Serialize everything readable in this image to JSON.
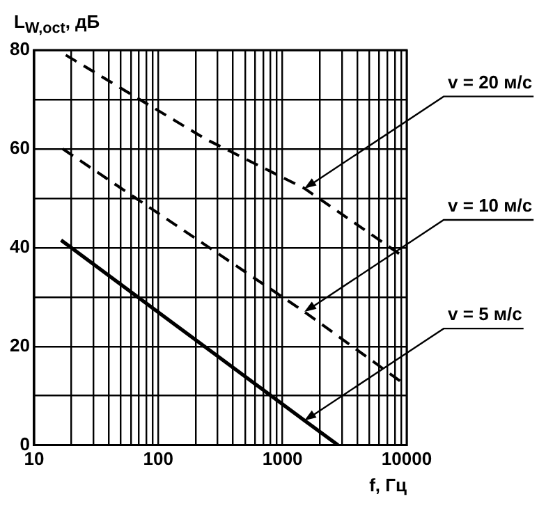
{
  "chart_data": {
    "type": "line",
    "ylabel": "L$_{W,oct}$, дБ",
    "xlabel": "f, Гц",
    "log": "x",
    "grid": true,
    "legend": false,
    "marker": "none",
    "xlim": [
      10,
      10000
    ],
    "ylim": [
      0,
      80
    ],
    "xticks": [
      10,
      {
        "value": 20,
        "label": null
      },
      {
        "value": 30,
        "label": null
      },
      {
        "value": 40,
        "label": null
      },
      {
        "value": 50,
        "label": null
      },
      {
        "value": 60,
        "label": null
      },
      {
        "value": 70,
        "label": null
      },
      {
        "value": 80,
        "label": null
      },
      {
        "value": 90,
        "label": null
      },
      100,
      {
        "value": 200,
        "label": null
      },
      {
        "value": 300,
        "label": null
      },
      {
        "value": 400,
        "label": null
      },
      {
        "value": 500,
        "label": null
      },
      {
        "value": 600,
        "label": null
      },
      {
        "value": 700,
        "label": null
      },
      {
        "value": 800,
        "label": null
      },
      {
        "value": 900,
        "label": null
      },
      1000,
      {
        "value": 2000,
        "label": null
      },
      {
        "value": 3000,
        "label": null
      },
      {
        "value": 4000,
        "label": null
      },
      {
        "value": 5000,
        "label": null
      },
      {
        "value": 6000,
        "label": null
      },
      {
        "value": 7000,
        "label": null
      },
      {
        "value": 8000,
        "label": null
      },
      {
        "value": 9000,
        "label": null
      },
      10000
    ],
    "yticks": [
      0,
      {
        "value": 10,
        "label": null
      },
      20,
      {
        "value": 30,
        "label": null
      },
      40,
      {
        "value": 50,
        "label": null
      },
      60,
      {
        "value": 70,
        "label": null
      },
      80
    ],
    "series": [
      {
        "name": "v = 20 м/с",
        "color": "#000000",
        "line_style": "dashed",
        "x": [
          18,
          240,
          1500,
          9000
        ],
        "values": [
          79,
          62,
          52,
          38.5
        ]
      },
      {
        "name": "v = 10 м/с",
        "color": "#000000",
        "line_style": "dashed",
        "x": [
          17,
          1500,
          9400
        ],
        "values": [
          60,
          27,
          12.5
        ]
      },
      {
        "name": "v = 5 м/с",
        "color": "#000000",
        "line_style": "solid",
        "x": [
          16.5,
          1500,
          2800
        ],
        "values": [
          41.5,
          5,
          0
        ]
      }
    ]
  }
}
